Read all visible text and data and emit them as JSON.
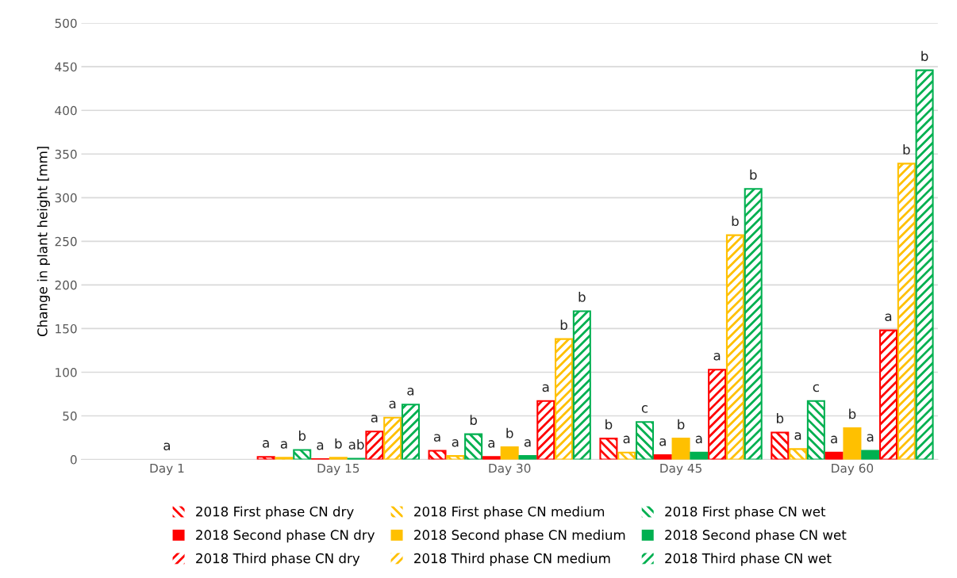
{
  "chart_data": {
    "type": "bar",
    "ylabel": "Change in plant height [mm]",
    "categories": [
      "Day 1",
      "Day 15",
      "Day 30",
      "Day 45",
      "Day 60"
    ],
    "ylim": [
      0,
      500
    ],
    "yticks": [
      0,
      50,
      100,
      150,
      200,
      250,
      300,
      350,
      400,
      450,
      500
    ],
    "grid": "y",
    "legend": "bottom",
    "series": [
      {
        "name": "2018 First phase CN dry",
        "color": "#ff0000",
        "values": [
          0,
          3,
          10,
          24,
          31
        ],
        "value_labels": [
          null,
          "a",
          "a",
          "b",
          "b"
        ]
      },
      {
        "name": "2018 First phase CN medium",
        "color": "#ffc000",
        "values": [
          0,
          2,
          4,
          8,
          12
        ],
        "value_labels": [
          null,
          "a",
          "a",
          "a",
          "a"
        ]
      },
      {
        "name": "2018 First phase CN wet",
        "color": "#00b050",
        "values": [
          0,
          11,
          29,
          43,
          67
        ],
        "value_labels": [
          null,
          "b",
          "b",
          "c",
          "c"
        ]
      },
      {
        "name": "2018 Second phase CN dry",
        "color": "#ff0000",
        "values": [
          0,
          0.5,
          3,
          5,
          8
        ],
        "value_labels": [
          null,
          "a",
          "a",
          "a",
          "a"
        ]
      },
      {
        "name": "2018 Second phase CN medium",
        "color": "#ffc000",
        "values": [
          0,
          2,
          14,
          24,
          36
        ],
        "value_labels": [
          "a",
          "b",
          "b",
          "b",
          "b"
        ]
      },
      {
        "name": "2018 Second phase CN wet",
        "color": "#00b050",
        "values": [
          0,
          1,
          4,
          8,
          10
        ],
        "value_labels": [
          null,
          "ab",
          "a",
          "a",
          "a"
        ]
      },
      {
        "name": "2018 Third phase CN dry",
        "color": "#ff0000",
        "values": [
          0,
          32,
          67,
          103,
          148
        ],
        "value_labels": [
          null,
          "a",
          "a",
          "a",
          "a"
        ]
      },
      {
        "name": "2018 Third phase CN medium",
        "color": "#ffc000",
        "values": [
          0,
          48,
          138,
          257,
          339
        ],
        "value_labels": [
          null,
          "a",
          "b",
          "b",
          "b"
        ]
      },
      {
        "name": "2018 Third phase CN wet",
        "color": "#00b050",
        "values": [
          0,
          63,
          170,
          310,
          446
        ],
        "value_labels": [
          null,
          "a",
          "b",
          "b",
          "b"
        ]
      }
    ]
  }
}
